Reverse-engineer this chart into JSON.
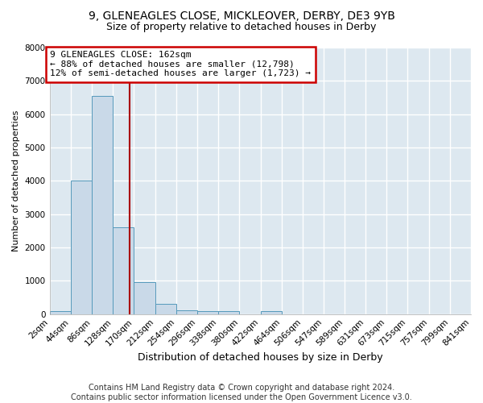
{
  "title1": "9, GLENEAGLES CLOSE, MICKLEOVER, DERBY, DE3 9YB",
  "title2": "Size of property relative to detached houses in Derby",
  "xlabel": "Distribution of detached houses by size in Derby",
  "ylabel": "Number of detached properties",
  "bin_edges": [
    2,
    44,
    86,
    128,
    170,
    212,
    254,
    296,
    338,
    380,
    422,
    464,
    506,
    547,
    589,
    631,
    673,
    715,
    757,
    799,
    841
  ],
  "bar_heights": [
    100,
    4000,
    6550,
    2600,
    950,
    300,
    120,
    100,
    100,
    0,
    100,
    0,
    0,
    0,
    0,
    0,
    0,
    0,
    0,
    0
  ],
  "bar_color": "#c9d9e8",
  "bar_edge_color": "#5599bb",
  "property_size": 162,
  "vline_color": "#aa0000",
  "annotation_text": "9 GLENEAGLES CLOSE: 162sqm\n← 88% of detached houses are smaller (12,798)\n12% of semi-detached houses are larger (1,723) →",
  "annotation_box_color": "#cc0000",
  "annotation_bg": "#ffffff",
  "ylim": [
    0,
    8000
  ],
  "yticks": [
    0,
    1000,
    2000,
    3000,
    4000,
    5000,
    6000,
    7000,
    8000
  ],
  "bg_color": "#ffffff",
  "plot_bg": "#dde8f0",
  "grid_color": "#ffffff",
  "footer": "Contains HM Land Registry data © Crown copyright and database right 2024.\nContains public sector information licensed under the Open Government Licence v3.0.",
  "title1_fontsize": 10,
  "title2_fontsize": 9,
  "xlabel_fontsize": 9,
  "ylabel_fontsize": 8,
  "tick_fontsize": 7.5,
  "footer_fontsize": 7,
  "annot_fontsize": 8
}
